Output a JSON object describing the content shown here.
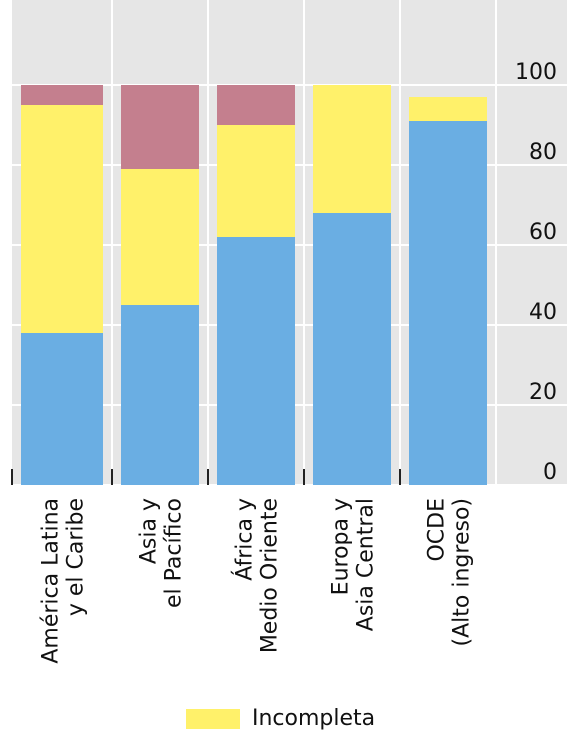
{
  "chart_data": {
    "type": "bar",
    "stacked": true,
    "categories": [
      [
        "América Latina",
        "y el Caribe"
      ],
      [
        "Asia y",
        "el Pacífico"
      ],
      [
        "África y",
        "Medio Oriente"
      ],
      [
        "Europa y",
        "Asia Central"
      ],
      [
        "OCDE",
        "(Alto ingreso)"
      ]
    ],
    "series": [
      {
        "color": "#6aaee3",
        "values": [
          38,
          45,
          62,
          68,
          91
        ]
      },
      {
        "name": "Incompleta",
        "color": "#fff16a",
        "values": [
          57,
          34,
          28,
          32,
          6
        ]
      },
      {
        "color": "#c47f8e",
        "values": [
          5,
          21,
          10,
          0,
          0
        ]
      }
    ],
    "ylim": [
      0,
      100
    ],
    "yticks": [
      "0",
      "20",
      "40",
      "60",
      "80",
      "100"
    ],
    "y_axis_position": "right",
    "grid": true,
    "background": "#e6e6e6",
    "legend_position": "bottom"
  },
  "legend": {
    "label": "Incompleta",
    "color": "#fff16a"
  }
}
